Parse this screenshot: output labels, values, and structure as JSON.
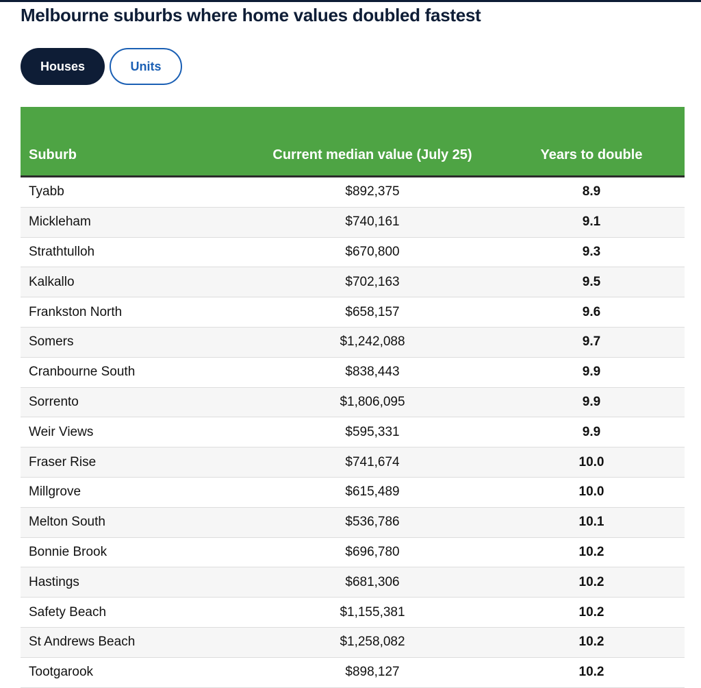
{
  "header": {
    "title": "Melbourne suburbs where home values doubled fastest"
  },
  "tabs": [
    "Houses",
    "Units"
  ],
  "table": {
    "columns": [
      "Suburb",
      "Current median value (July 25)",
      "Years to double"
    ],
    "rows": [
      [
        "Tyabb",
        "$892,375",
        "8.9"
      ],
      [
        "Mickleham",
        "$740,161",
        "9.1"
      ],
      [
        "Strathtulloh",
        "$670,800",
        "9.3"
      ],
      [
        "Kalkallo",
        "$702,163",
        "9.5"
      ],
      [
        "Frankston North",
        "$658,157",
        "9.6"
      ],
      [
        "Somers",
        "$1,242,088",
        "9.7"
      ],
      [
        "Cranbourne South",
        "$838,443",
        "9.9"
      ],
      [
        "Sorrento",
        "$1,806,095",
        "9.9"
      ],
      [
        "Weir Views",
        "$595,331",
        "9.9"
      ],
      [
        "Fraser Rise",
        "$741,674",
        "10.0"
      ],
      [
        "Millgrove",
        "$615,489",
        "10.0"
      ],
      [
        "Melton South",
        "$536,786",
        "10.1"
      ],
      [
        "Bonnie Brook",
        "$696,780",
        "10.2"
      ],
      [
        "Hastings",
        "$681,306",
        "10.2"
      ],
      [
        "Safety Beach",
        "$1,155,381",
        "10.2"
      ],
      [
        "St Andrews Beach",
        "$1,258,082",
        "10.2"
      ],
      [
        "Tootgarook",
        "$898,127",
        "10.2"
      ]
    ]
  }
}
